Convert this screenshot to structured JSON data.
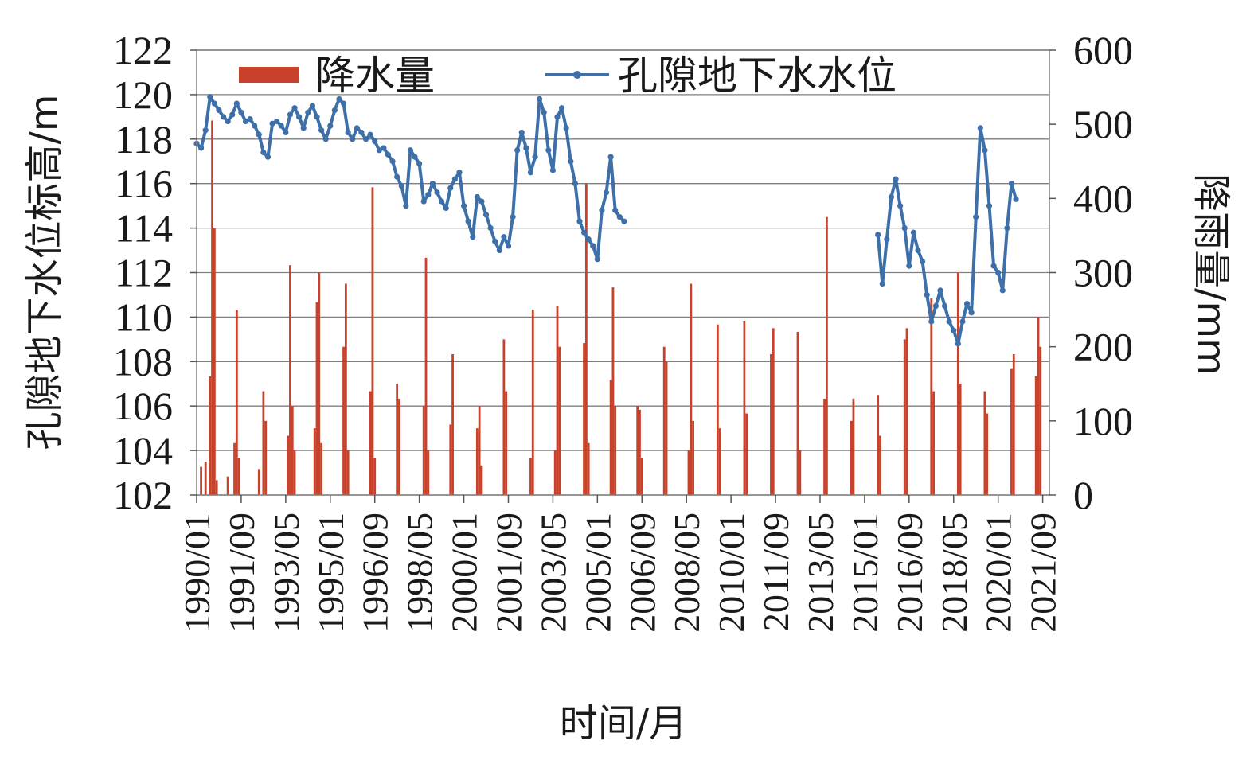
{
  "chart_data": {
    "type": "bar+line",
    "xlabel": "时间/月",
    "ylabel_left": "孔隙地下水位标高/m",
    "ylabel_right": "降雨量/mm",
    "y_left_range": [
      102,
      122
    ],
    "y_left_ticks": [
      "102",
      "104",
      "106",
      "108",
      "110",
      "112",
      "114",
      "116",
      "118",
      "120",
      "122"
    ],
    "y_right_range": [
      0,
      600
    ],
    "y_right_ticks": [
      "0",
      "100",
      "200",
      "300",
      "400",
      "500",
      "600"
    ],
    "x_range": [
      "1990/01",
      "2021/12"
    ],
    "x_ticks": [
      "1990/01",
      "1991/09",
      "1993/05",
      "1995/01",
      "1996/09",
      "1998/05",
      "2000/01",
      "2001/09",
      "2003/05",
      "2005/01",
      "2006/09",
      "2008/05",
      "2010/01",
      "2011/09",
      "2013/05",
      "2015/01",
      "2016/09",
      "2018/05",
      "2020/01",
      "2021/09"
    ],
    "grid": "horizontal",
    "legend_position": "top",
    "series": [
      {
        "name": "降水量",
        "kind": "bar",
        "axis": "right",
        "color": "#c8412b",
        "points": [
          [
            "1990/03",
            38
          ],
          [
            "1990/05",
            45
          ],
          [
            "1990/07",
            160
          ],
          [
            "1990/08",
            505
          ],
          [
            "1990/09",
            360
          ],
          [
            "1990/10",
            20
          ],
          [
            "1991/03",
            25
          ],
          [
            "1991/06",
            70
          ],
          [
            "1991/07",
            250
          ],
          [
            "1991/08",
            50
          ],
          [
            "1992/05",
            35
          ],
          [
            "1992/07",
            140
          ],
          [
            "1992/08",
            100
          ],
          [
            "1993/06",
            80
          ],
          [
            "1993/07",
            310
          ],
          [
            "1993/08",
            120
          ],
          [
            "1993/09",
            60
          ],
          [
            "1994/06",
            90
          ],
          [
            "1994/07",
            260
          ],
          [
            "1994/08",
            300
          ],
          [
            "1994/09",
            70
          ],
          [
            "1995/07",
            200
          ],
          [
            "1995/08",
            285
          ],
          [
            "1995/09",
            60
          ],
          [
            "1996/07",
            140
          ],
          [
            "1996/08",
            415
          ],
          [
            "1996/09",
            50
          ],
          [
            "1997/07",
            150
          ],
          [
            "1997/08",
            130
          ],
          [
            "1998/07",
            120
          ],
          [
            "1998/08",
            320
          ],
          [
            "1998/09",
            60
          ],
          [
            "1999/07",
            95
          ],
          [
            "1999/08",
            190
          ],
          [
            "2000/07",
            90
          ],
          [
            "2000/08",
            120
          ],
          [
            "2000/09",
            40
          ],
          [
            "2001/07",
            210
          ],
          [
            "2001/08",
            140
          ],
          [
            "2002/07",
            50
          ],
          [
            "2002/08",
            250
          ],
          [
            "2003/06",
            60
          ],
          [
            "2003/07",
            255
          ],
          [
            "2003/08",
            200
          ],
          [
            "2004/07",
            205
          ],
          [
            "2004/08",
            420
          ],
          [
            "2004/09",
            70
          ],
          [
            "2005/07",
            155
          ],
          [
            "2005/08",
            280
          ],
          [
            "2005/09",
            120
          ],
          [
            "2006/07",
            120
          ],
          [
            "2006/08",
            115
          ],
          [
            "2006/09",
            50
          ],
          [
            "2007/07",
            200
          ],
          [
            "2007/08",
            180
          ],
          [
            "2008/06",
            60
          ],
          [
            "2008/07",
            285
          ],
          [
            "2008/08",
            100
          ],
          [
            "2009/07",
            230
          ],
          [
            "2009/08",
            90
          ],
          [
            "2010/07",
            235
          ],
          [
            "2010/08",
            110
          ],
          [
            "2011/07",
            190
          ],
          [
            "2011/08",
            225
          ],
          [
            "2012/07",
            220
          ],
          [
            "2012/08",
            60
          ],
          [
            "2013/07",
            130
          ],
          [
            "2013/08",
            375
          ],
          [
            "2014/07",
            100
          ],
          [
            "2014/08",
            130
          ],
          [
            "2015/07",
            135
          ],
          [
            "2015/08",
            80
          ],
          [
            "2016/07",
            210
          ],
          [
            "2016/08",
            225
          ],
          [
            "2017/07",
            265
          ],
          [
            "2017/08",
            140
          ],
          [
            "2018/07",
            300
          ],
          [
            "2018/08",
            150
          ],
          [
            "2019/07",
            140
          ],
          [
            "2019/08",
            110
          ],
          [
            "2020/07",
            170
          ],
          [
            "2020/08",
            190
          ],
          [
            "2021/06",
            160
          ],
          [
            "2021/07",
            240
          ],
          [
            "2021/08",
            200
          ]
        ]
      },
      {
        "name": "孔隙地下水水位",
        "kind": "line",
        "axis": "left",
        "color": "#3d6fa8",
        "segments": [
          [
            [
              "1990/01",
              117.8
            ],
            [
              "1990/03",
              117.6
            ],
            [
              "1990/05",
              118.4
            ],
            [
              "1990/07",
              119.9
            ],
            [
              "1990/09",
              119.6
            ],
            [
              "1990/11",
              119.3
            ],
            [
              "1991/01",
              119.0
            ],
            [
              "1991/03",
              118.8
            ],
            [
              "1991/05",
              119.1
            ],
            [
              "1991/07",
              119.6
            ],
            [
              "1991/09",
              119.2
            ],
            [
              "1991/11",
              118.8
            ],
            [
              "1992/01",
              118.9
            ],
            [
              "1992/03",
              118.6
            ],
            [
              "1992/05",
              118.2
            ],
            [
              "1992/07",
              117.4
            ],
            [
              "1992/09",
              117.2
            ],
            [
              "1992/11",
              118.7
            ],
            [
              "1993/01",
              118.8
            ],
            [
              "1993/03",
              118.6
            ],
            [
              "1993/05",
              118.3
            ],
            [
              "1993/07",
              119.1
            ],
            [
              "1993/09",
              119.4
            ],
            [
              "1993/11",
              119.0
            ],
            [
              "1994/01",
              118.5
            ],
            [
              "1994/03",
              119.2
            ],
            [
              "1994/05",
              119.5
            ],
            [
              "1994/07",
              119.0
            ],
            [
              "1994/09",
              118.4
            ],
            [
              "1994/11",
              118.0
            ],
            [
              "1995/01",
              118.6
            ],
            [
              "1995/03",
              119.3
            ],
            [
              "1995/05",
              119.8
            ],
            [
              "1995/07",
              119.6
            ],
            [
              "1995/09",
              118.3
            ],
            [
              "1995/11",
              118.0
            ],
            [
              "1996/01",
              118.5
            ],
            [
              "1996/03",
              118.3
            ],
            [
              "1996/05",
              118.0
            ],
            [
              "1996/07",
              118.2
            ],
            [
              "1996/09",
              117.9
            ],
            [
              "1996/11",
              117.5
            ],
            [
              "1997/01",
              117.6
            ],
            [
              "1997/03",
              117.3
            ],
            [
              "1997/05",
              117.0
            ],
            [
              "1997/07",
              116.3
            ],
            [
              "1997/09",
              115.9
            ],
            [
              "1997/11",
              115.0
            ],
            [
              "1998/01",
              117.5
            ],
            [
              "1998/03",
              117.2
            ],
            [
              "1998/05",
              116.9
            ],
            [
              "1998/07",
              115.2
            ],
            [
              "1998/09",
              115.5
            ],
            [
              "1998/11",
              116.0
            ],
            [
              "1999/01",
              115.6
            ],
            [
              "1999/03",
              115.2
            ],
            [
              "1999/05",
              114.9
            ],
            [
              "1999/07",
              115.8
            ],
            [
              "1999/09",
              116.2
            ],
            [
              "1999/11",
              116.5
            ],
            [
              "2000/01",
              115.0
            ],
            [
              "2000/03",
              114.3
            ],
            [
              "2000/05",
              113.6
            ],
            [
              "2000/07",
              115.4
            ],
            [
              "2000/09",
              115.2
            ],
            [
              "2000/11",
              114.6
            ],
            [
              "2001/01",
              114.0
            ],
            [
              "2001/03",
              113.4
            ],
            [
              "2001/05",
              113.0
            ],
            [
              "2001/07",
              113.6
            ],
            [
              "2001/09",
              113.2
            ],
            [
              "2001/11",
              114.5
            ],
            [
              "2002/01",
              117.5
            ],
            [
              "2002/03",
              118.3
            ],
            [
              "2002/05",
              117.6
            ],
            [
              "2002/07",
              116.5
            ],
            [
              "2002/09",
              117.2
            ],
            [
              "2002/11",
              119.8
            ],
            [
              "2003/01",
              119.2
            ],
            [
              "2003/03",
              117.5
            ],
            [
              "2003/05",
              116.6
            ],
            [
              "2003/07",
              119.0
            ],
            [
              "2003/09",
              119.4
            ],
            [
              "2003/11",
              118.5
            ],
            [
              "2004/01",
              117.0
            ],
            [
              "2004/03",
              116.0
            ],
            [
              "2004/05",
              114.3
            ],
            [
              "2004/07",
              113.8
            ],
            [
              "2004/09",
              113.5
            ],
            [
              "2004/11",
              113.2
            ],
            [
              "2005/01",
              112.6
            ],
            [
              "2005/03",
              114.8
            ],
            [
              "2005/05",
              115.6
            ],
            [
              "2005/07",
              117.2
            ],
            [
              "2005/09",
              114.8
            ],
            [
              "2005/11",
              114.5
            ],
            [
              "2006/01",
              114.3
            ]
          ],
          [
            [
              "2015/07",
              113.7
            ],
            [
              "2015/09",
              111.5
            ],
            [
              "2015/11",
              113.5
            ],
            [
              "2016/01",
              115.4
            ],
            [
              "2016/03",
              116.2
            ],
            [
              "2016/05",
              115.0
            ],
            [
              "2016/07",
              114.0
            ],
            [
              "2016/09",
              112.3
            ],
            [
              "2016/11",
              113.8
            ],
            [
              "2017/01",
              113.0
            ],
            [
              "2017/03",
              112.5
            ],
            [
              "2017/05",
              111.0
            ],
            [
              "2017/07",
              109.8
            ],
            [
              "2017/09",
              110.5
            ],
            [
              "2017/11",
              111.2
            ],
            [
              "2018/01",
              110.5
            ],
            [
              "2018/03",
              109.8
            ],
            [
              "2018/05",
              109.4
            ],
            [
              "2018/07",
              108.8
            ],
            [
              "2018/09",
              109.8
            ],
            [
              "2018/11",
              110.6
            ],
            [
              "2019/01",
              110.2
            ],
            [
              "2019/03",
              114.5
            ],
            [
              "2019/05",
              118.5
            ],
            [
              "2019/07",
              117.5
            ],
            [
              "2019/09",
              115.0
            ],
            [
              "2019/11",
              112.3
            ],
            [
              "2020/01",
              112.0
            ],
            [
              "2020/03",
              111.2
            ],
            [
              "2020/05",
              114.0
            ],
            [
              "2020/07",
              116.0
            ],
            [
              "2020/09",
              115.3
            ]
          ]
        ]
      }
    ]
  }
}
